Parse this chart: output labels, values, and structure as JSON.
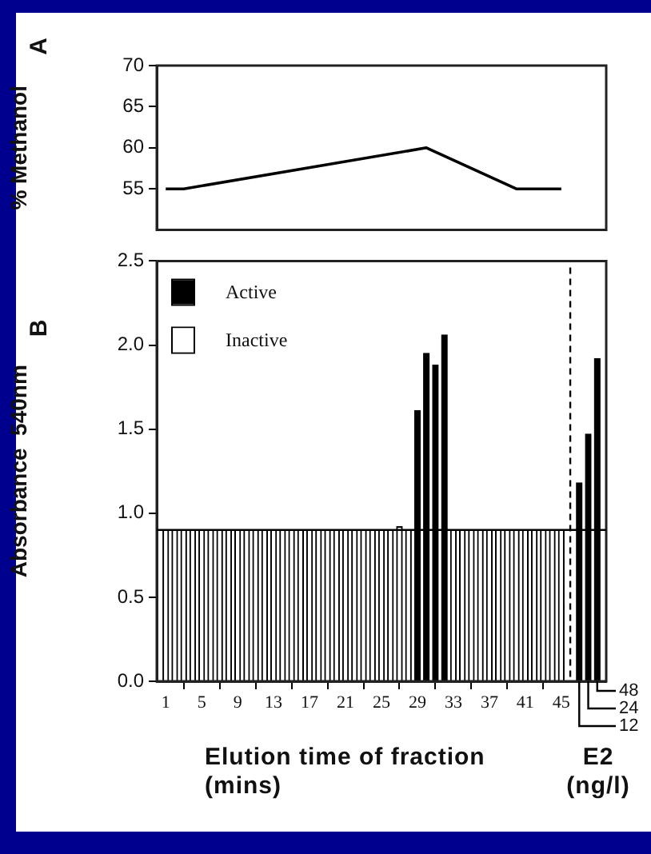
{
  "chart_data": [
    {
      "type": "line",
      "title": "A",
      "ylabel": "% Methanol",
      "x": [
        1,
        3,
        30,
        40,
        45
      ],
      "series": [
        {
          "color": "#000000",
          "values": [
            55,
            55,
            60,
            55,
            55
          ]
        }
      ],
      "xlim": [
        0,
        50
      ],
      "ylim": [
        50,
        70
      ],
      "yticks": [
        55,
        60,
        65,
        70
      ],
      "tick_labels": "y",
      "marker": "none",
      "line_style": "solid",
      "grid": false,
      "legend": false
    },
    {
      "type": "bar",
      "title": "B",
      "ylabel": "Absorbance  540nm",
      "xlabel": "Elution time of fraction (mins)",
      "x": [
        1,
        2,
        3,
        4,
        5,
        6,
        7,
        8,
        9,
        10,
        11,
        12,
        13,
        14,
        15,
        16,
        17,
        18,
        19,
        20,
        21,
        22,
        23,
        24,
        25,
        26,
        27,
        28,
        29,
        30,
        31,
        32,
        33,
        34,
        35,
        36,
        37,
        38,
        39,
        40,
        41,
        42,
        43,
        44,
        45,
        47,
        48,
        49
      ],
      "series": [
        {
          "name": "Active",
          "color": "#000000",
          "values": [
            null,
            null,
            null,
            null,
            null,
            null,
            null,
            null,
            null,
            null,
            null,
            null,
            null,
            null,
            null,
            null,
            null,
            null,
            null,
            null,
            null,
            null,
            null,
            null,
            null,
            null,
            null,
            null,
            1.61,
            1.95,
            1.88,
            2.06,
            null,
            null,
            null,
            null,
            null,
            null,
            null,
            null,
            null,
            null,
            null,
            null,
            null,
            1.18,
            1.47,
            1.92
          ]
        },
        {
          "name": "Inactive",
          "color": "#ffffff",
          "values": [
            0.9,
            0.9,
            0.9,
            0.9,
            0.9,
            0.9,
            0.9,
            0.9,
            0.9,
            0.9,
            0.9,
            0.9,
            0.9,
            0.9,
            0.9,
            0.9,
            0.9,
            0.9,
            0.9,
            0.9,
            0.9,
            0.9,
            0.9,
            0.9,
            0.9,
            0.9,
            0.92,
            0.9,
            null,
            null,
            null,
            null,
            0.9,
            0.9,
            0.9,
            0.9,
            0.9,
            0.9,
            0.9,
            0.9,
            0.9,
            0.9,
            0.9,
            0.9,
            0.9,
            null,
            null,
            null
          ]
        }
      ],
      "xlim": [
        0,
        50
      ],
      "xticks": [
        1,
        5,
        9,
        13,
        17,
        21,
        25,
        29,
        33,
        37,
        41,
        45
      ],
      "ylim": [
        0,
        2.5
      ],
      "yticks": [
        {
          "value": 0,
          "label": "0.0"
        },
        0.5,
        {
          "value": 1,
          "label": "1.0"
        },
        1.5,
        {
          "value": 2,
          "label": "2.0"
        },
        2.5
      ],
      "ref_lines": [
        {
          "axis": "y",
          "value": 0.9,
          "color": "#000000",
          "line_style": "solid"
        },
        {
          "axis": "x",
          "value": 46,
          "color": "#000000",
          "line_style": "dashed"
        }
      ],
      "annotations": [
        {
          "text": "12",
          "x": 47,
          "y": 0
        },
        {
          "text": "24",
          "x": 48,
          "y": 0
        },
        {
          "text": "48",
          "x": 49,
          "y": 0
        },
        "E2 (ng/l)"
      ],
      "legend": "top left",
      "grid": false
    }
  ]
}
